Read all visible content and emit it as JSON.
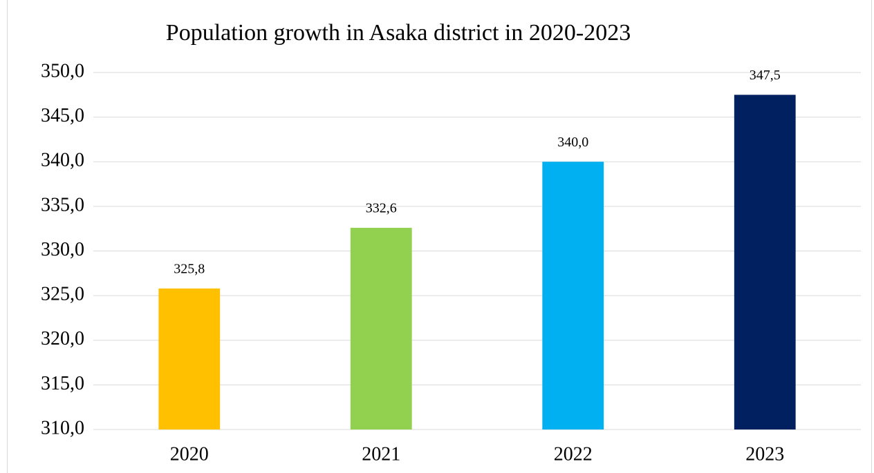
{
  "chart_data": {
    "type": "bar",
    "title": "Population growth in Asaka district in 2020-2023",
    "categories": [
      "2020",
      "2021",
      "2022",
      "2023"
    ],
    "values": [
      325.8,
      332.6,
      340.0,
      347.5
    ],
    "value_labels": [
      "325,8",
      "332,6",
      "340,0",
      "347,5"
    ],
    "colors": [
      "#ffc000",
      "#92d050",
      "#00b0f0",
      "#002060"
    ],
    "ylim": [
      310,
      350
    ],
    "yticks": [
      {
        "value": 310,
        "label": "310,0"
      },
      {
        "value": 315,
        "label": "315,0"
      },
      {
        "value": 320,
        "label": "320,0"
      },
      {
        "value": 325,
        "label": "325,0"
      },
      {
        "value": 330,
        "label": "330,0"
      },
      {
        "value": 335,
        "label": "335,0"
      },
      {
        "value": 340,
        "label": "340,0"
      },
      {
        "value": 345,
        "label": "345,0"
      },
      {
        "value": 350,
        "label": "350,0"
      }
    ],
    "grid": true
  }
}
